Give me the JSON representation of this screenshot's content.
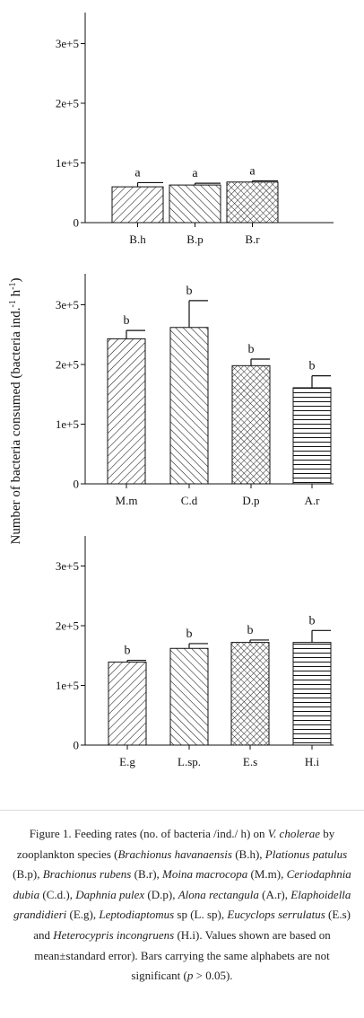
{
  "y_axis_label": "Number of bacteria consumed (bacteria ind.",
  "y_axis_label_sup1": "-1",
  "y_axis_label_mid": " h",
  "y_axis_label_sup2": "-1",
  "y_axis_label_end": ")",
  "caption": {
    "parts": [
      {
        "t": "Figure 1. Feeding rates (no. of bacteria /ind./ h) on ",
        "i": false
      },
      {
        "t": "V. cholerae",
        "i": true
      },
      {
        "t": " by zooplankton species (",
        "i": false
      },
      {
        "t": "Brachionus havanaensis",
        "i": true
      },
      {
        "t": " (B.h), ",
        "i": false
      },
      {
        "t": "Plationus patulus",
        "i": true
      },
      {
        "t": " (B.p), ",
        "i": false
      },
      {
        "t": "Brachionus rubens",
        "i": true
      },
      {
        "t": " (B.r), ",
        "i": false
      },
      {
        "t": "Moina macrocopa",
        "i": true
      },
      {
        "t": " (M.m), ",
        "i": false
      },
      {
        "t": "Ceriodaphnia dubia",
        "i": true
      },
      {
        "t": " (C.d.), ",
        "i": false
      },
      {
        "t": "Daphnia pulex",
        "i": true
      },
      {
        "t": " (D.p), ",
        "i": false
      },
      {
        "t": "Alona rectangula",
        "i": true
      },
      {
        "t": " (A.r), ",
        "i": false
      },
      {
        "t": "Elaphoidella grandidieri",
        "i": true
      },
      {
        "t": " (E.g), ",
        "i": false
      },
      {
        "t": "Leptodiaptomus",
        "i": true
      },
      {
        "t": " sp (L. sp), ",
        "i": false
      },
      {
        "t": "Eucyclops serrulatus",
        "i": true
      },
      {
        "t": " (E.s) and ",
        "i": false
      },
      {
        "t": "Heterocypris incongruens",
        "i": true
      },
      {
        "t": " (H.i). Values shown are based on mean±standard error). Bars carrying the same alphabets are not significant (",
        "i": false
      },
      {
        "t": "p",
        "i": true
      },
      {
        "t": " > 0.05).",
        "i": false
      }
    ]
  },
  "chart_data": [
    {
      "type": "bar",
      "categories": [
        "B.h",
        "B.p",
        "B.r"
      ],
      "values": [
        60000,
        63000,
        68000
      ],
      "errors": [
        7000,
        3000,
        2000
      ],
      "letters": [
        "a",
        "a",
        "a"
      ],
      "patterns": [
        "diag-right",
        "diag-left",
        "cross"
      ],
      "ylim": [
        0,
        350000
      ],
      "yticks": [
        0,
        100000,
        200000,
        300000
      ],
      "ytick_labels": [
        "0",
        "1e+5",
        "2e+5",
        "3e+5"
      ]
    },
    {
      "type": "bar",
      "categories": [
        "M.m",
        "C.d",
        "D.p",
        "A.r"
      ],
      "values": [
        243000,
        262000,
        198000,
        161000
      ],
      "errors": [
        14000,
        45000,
        11000,
        20000
      ],
      "letters": [
        "b",
        "b",
        "b",
        "b"
      ],
      "patterns": [
        "diag-right",
        "diag-left",
        "cross",
        "horizontal"
      ],
      "ylim": [
        0,
        350000
      ],
      "yticks": [
        0,
        100000,
        200000,
        300000
      ],
      "ytick_labels": [
        "0",
        "1e+5",
        "2e+5",
        "3e+5"
      ]
    },
    {
      "type": "bar",
      "categories": [
        "E.g",
        "L.sp.",
        "E.s",
        "H.i"
      ],
      "values": [
        139000,
        162000,
        172000,
        172000
      ],
      "errors": [
        3000,
        8000,
        4000,
        20000
      ],
      "letters": [
        "b",
        "b",
        "b",
        "b"
      ],
      "patterns": [
        "diag-right",
        "diag-left",
        "cross",
        "horizontal"
      ],
      "ylim": [
        0,
        350000
      ],
      "yticks": [
        0,
        100000,
        200000,
        300000
      ],
      "ytick_labels": [
        "0",
        "1e+5",
        "2e+5",
        "3e+5"
      ]
    }
  ]
}
